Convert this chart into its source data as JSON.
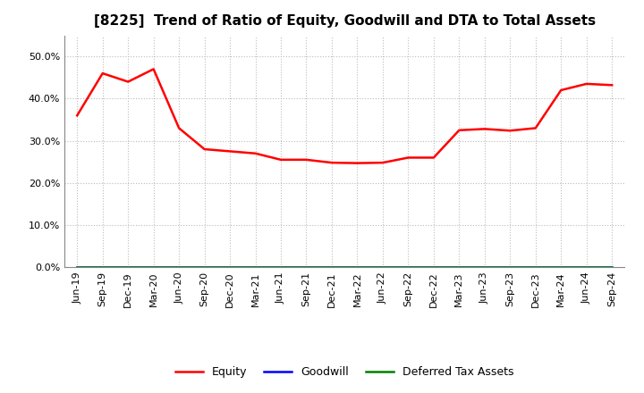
{
  "title": "[8225]  Trend of Ratio of Equity, Goodwill and DTA to Total Assets",
  "x_labels": [
    "Jun-19",
    "Sep-19",
    "Dec-19",
    "Mar-20",
    "Jun-20",
    "Sep-20",
    "Dec-20",
    "Mar-21",
    "Jun-21",
    "Sep-21",
    "Dec-21",
    "Mar-22",
    "Jun-22",
    "Sep-22",
    "Dec-22",
    "Mar-23",
    "Jun-23",
    "Sep-23",
    "Dec-23",
    "Mar-24",
    "Jun-24",
    "Sep-24"
  ],
  "equity": [
    0.36,
    0.46,
    0.44,
    0.47,
    0.33,
    0.28,
    0.275,
    0.27,
    0.255,
    0.255,
    0.248,
    0.247,
    0.248,
    0.26,
    0.26,
    0.325,
    0.328,
    0.324,
    0.33,
    0.42,
    0.435,
    0.432
  ],
  "goodwill": [
    0,
    0,
    0,
    0,
    0,
    0,
    0,
    0,
    0,
    0,
    0,
    0,
    0,
    0,
    0,
    0,
    0,
    0,
    0,
    0,
    0,
    0
  ],
  "deferred_tax": [
    0,
    0,
    0,
    0,
    0,
    0,
    0,
    0,
    0,
    0,
    0,
    0,
    0,
    0,
    0,
    0,
    0,
    0,
    0,
    0,
    0,
    0
  ],
  "equity_color": "#FF0000",
  "goodwill_color": "#0000FF",
  "dta_color": "#008000",
  "ylim": [
    0.0,
    0.55
  ],
  "yticks": [
    0.0,
    0.1,
    0.2,
    0.3,
    0.4,
    0.5
  ],
  "background_color": "#FFFFFF",
  "plot_bg_color": "#FFFFFF",
  "grid_color": "#BBBBBB",
  "title_fontsize": 11,
  "tick_fontsize": 8,
  "legend_labels": [
    "Equity",
    "Goodwill",
    "Deferred Tax Assets"
  ]
}
